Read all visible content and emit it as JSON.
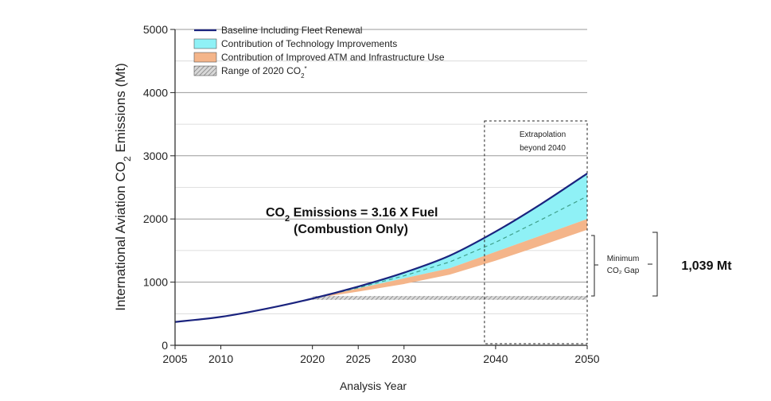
{
  "chart_data": {
    "type": "area",
    "title": "",
    "xlabel": "Analysis Year",
    "ylabel_parts": [
      "International Aviation CO",
      "2",
      " Emissions (Mt)"
    ],
    "xlim": [
      2005,
      2050
    ],
    "ylim": [
      0,
      5000
    ],
    "x_ticks": [
      2005,
      2010,
      2020,
      2025,
      2030,
      2040,
      2050
    ],
    "y_ticks": [
      0,
      1000,
      2000,
      3000,
      4000,
      5000
    ],
    "grid": true,
    "legend_position": "top-left",
    "legend": [
      {
        "label": "Baseline Including Fleet Renewal",
        "kind": "line",
        "color": "#1a237e"
      },
      {
        "label": "Contribution of Technology Improvements",
        "kind": "patch",
        "color": "#8ff1f6"
      },
      {
        "label": "Contribution of Improved ATM and Infrastructure Use",
        "kind": "patch",
        "color": "#f4b58a"
      },
      {
        "label_main": "Range of 2020 CO",
        "label_sub": "2",
        "label_tail": "*",
        "kind": "hatch",
        "color": "#999999"
      }
    ],
    "x": [
      2005,
      2010,
      2015,
      2020,
      2025,
      2030,
      2035,
      2040,
      2045,
      2050
    ],
    "series": [
      {
        "name": "Baseline Including Fleet Renewal",
        "values": [
          370,
          450,
          580,
          740,
          930,
          1150,
          1420,
          1800,
          2240,
          2720
        ],
        "color": "#1a237e"
      },
      {
        "name": "Contribution of Technology Improvements",
        "values": [
          370,
          450,
          580,
          740,
          900,
          1060,
          1220,
          1480,
          1740,
          2000
        ],
        "color": "#8ff1f6"
      },
      {
        "name": "Contribution of Improved ATM and Infrastructure Use",
        "values": [
          370,
          450,
          580,
          740,
          850,
          970,
          1120,
          1340,
          1580,
          1830
        ],
        "color": "#f4b58a"
      }
    ],
    "dashed_line_values": [
      370,
      450,
      580,
      740,
      910,
      1100,
      1320,
      1630,
      1990,
      2360
    ],
    "range_2020": {
      "x_start": 2020,
      "x_end": 2050,
      "low": 720,
      "high": 780
    },
    "extrapolation_box": {
      "x_start": 2040,
      "x_end": 2050,
      "label_lines": [
        "Extrapolation",
        "beyond 2040"
      ]
    },
    "annotation": {
      "line1_pre": "CO",
      "line1_sub": "2",
      "line1_post": " Emissions = 3.16 X Fuel",
      "line2": "(Combustion Only)"
    },
    "gap": {
      "label_lines": [
        "Minimum",
        "CO₂ Gap"
      ],
      "value_label": "1,039 Mt"
    }
  }
}
